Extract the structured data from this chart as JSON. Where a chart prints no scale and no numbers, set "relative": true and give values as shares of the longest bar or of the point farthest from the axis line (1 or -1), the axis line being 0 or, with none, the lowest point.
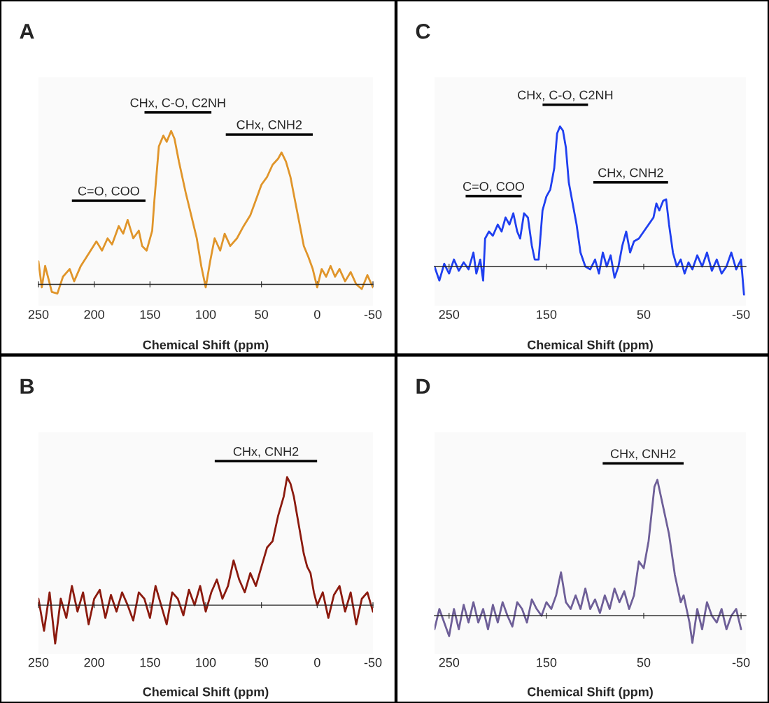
{
  "chart_data": [
    {
      "type": "line",
      "title": "A",
      "relative": true,
      "xlabel": "Chemical Shift (ppm)",
      "xlim": [
        250,
        -50
      ],
      "xticks": [
        250,
        200,
        150,
        100,
        50,
        0,
        -50
      ],
      "grid": false,
      "series": [
        {
          "color": "#e0952a",
          "x": [
            250,
            247,
            244,
            238,
            233,
            228,
            222,
            218,
            212,
            205,
            198,
            193,
            188,
            184,
            178,
            174,
            170,
            165,
            160,
            157,
            153,
            148,
            146,
            142,
            138,
            135,
            131,
            128,
            124,
            118,
            112,
            108,
            104,
            100,
            96,
            92,
            87,
            83,
            78,
            72,
            66,
            60,
            55,
            50,
            45,
            40,
            35,
            32,
            28,
            24,
            20,
            16,
            12,
            8,
            4,
            0,
            -4,
            -8,
            -12,
            -16,
            -20,
            -25,
            -30,
            -35,
            -40,
            -45,
            -50
          ],
          "values": [
            0.15,
            -0.02,
            0.12,
            -0.05,
            -0.06,
            0.05,
            0.1,
            0.02,
            0.12,
            0.2,
            0.28,
            0.22,
            0.3,
            0.26,
            0.38,
            0.33,
            0.42,
            0.3,
            0.35,
            0.25,
            0.22,
            0.35,
            0.55,
            0.9,
            0.97,
            0.93,
            1.0,
            0.95,
            0.8,
            0.6,
            0.42,
            0.3,
            0.12,
            -0.02,
            0.15,
            0.3,
            0.22,
            0.33,
            0.25,
            0.3,
            0.38,
            0.45,
            0.55,
            0.65,
            0.7,
            0.78,
            0.82,
            0.86,
            0.8,
            0.7,
            0.55,
            0.4,
            0.25,
            0.18,
            0.1,
            -0.02,
            0.1,
            0.05,
            0.12,
            0.05,
            0.1,
            0.02,
            0.08,
            0.0,
            -0.03,
            0.06,
            -0.02
          ]
        }
      ],
      "annotations": [
        "C=O, COO",
        "CHx, C-O, C2NH",
        "CHx, CNH2"
      ]
    },
    {
      "type": "line",
      "title": "C",
      "relative": true,
      "xlabel": "Chemical Shift (ppm)",
      "xlim": [
        265,
        -55
      ],
      "xticks": [
        250,
        150,
        50,
        -50
      ],
      "grid": false,
      "series": [
        {
          "color": "#1f3ff0",
          "x": [
            265,
            260,
            255,
            250,
            245,
            240,
            235,
            230,
            225,
            222,
            218,
            215,
            213,
            209,
            205,
            200,
            196,
            192,
            188,
            184,
            180,
            177,
            173,
            169,
            165,
            162,
            158,
            154,
            150,
            146,
            142,
            139,
            136,
            133,
            130,
            127,
            123,
            119,
            115,
            110,
            105,
            100,
            96,
            92,
            88,
            84,
            80,
            76,
            72,
            68,
            64,
            60,
            55,
            50,
            45,
            40,
            37,
            34,
            30,
            27,
            24,
            20,
            16,
            12,
            8,
            4,
            0,
            -5,
            -10,
            -15,
            -20,
            -25,
            -30,
            -35,
            -40,
            -45,
            -50,
            -53
          ],
          "values": [
            0.0,
            -0.1,
            0.02,
            -0.05,
            0.05,
            -0.03,
            0.03,
            -0.02,
            0.1,
            -0.05,
            0.05,
            -0.1,
            0.2,
            0.25,
            0.22,
            0.3,
            0.25,
            0.35,
            0.3,
            0.38,
            0.25,
            0.2,
            0.38,
            0.35,
            0.15,
            0.05,
            0.05,
            0.4,
            0.5,
            0.55,
            0.7,
            0.95,
            1.0,
            0.97,
            0.85,
            0.6,
            0.45,
            0.3,
            0.1,
            0.0,
            -0.02,
            0.05,
            -0.05,
            0.1,
            0.0,
            0.08,
            -0.08,
            0.0,
            0.15,
            0.25,
            0.1,
            0.18,
            0.2,
            0.25,
            0.3,
            0.35,
            0.45,
            0.4,
            0.47,
            0.48,
            0.3,
            0.1,
            0.0,
            0.05,
            -0.05,
            0.03,
            -0.02,
            0.08,
            0.0,
            0.1,
            -0.03,
            0.05,
            -0.05,
            0.0,
            0.1,
            -0.02,
            0.05,
            -0.2
          ]
        }
      ],
      "annotations": [
        "C=O, COO",
        "CHx, C-O, C2NH",
        "CHx, CNH2"
      ]
    },
    {
      "type": "line",
      "title": "B",
      "relative": true,
      "xlabel": "Chemical Shift (ppm)",
      "xlim": [
        250,
        -50
      ],
      "xticks": [
        250,
        200,
        150,
        100,
        50,
        0,
        -50
      ],
      "grid": false,
      "series": [
        {
          "color": "#8b1a0e",
          "x": [
            250,
            245,
            240,
            235,
            230,
            225,
            220,
            215,
            210,
            205,
            200,
            195,
            190,
            185,
            180,
            175,
            170,
            165,
            160,
            155,
            150,
            145,
            140,
            135,
            130,
            125,
            120,
            115,
            110,
            105,
            100,
            95,
            90,
            85,
            80,
            75,
            70,
            65,
            60,
            55,
            50,
            45,
            40,
            35,
            30,
            27,
            24,
            21,
            18,
            15,
            12,
            9,
            6,
            3,
            0,
            -5,
            -10,
            -15,
            -20,
            -25,
            -30,
            -35,
            -40,
            -45,
            -50
          ],
          "values": [
            0.05,
            -0.2,
            0.1,
            -0.3,
            0.05,
            -0.1,
            0.15,
            -0.05,
            0.1,
            -0.15,
            0.05,
            0.12,
            -0.1,
            0.08,
            -0.05,
            0.1,
            0.0,
            -0.12,
            0.1,
            0.05,
            -0.1,
            0.15,
            0.0,
            -0.15,
            0.1,
            0.05,
            -0.08,
            0.12,
            0.0,
            0.15,
            -0.05,
            0.1,
            0.2,
            0.05,
            0.15,
            0.35,
            0.2,
            0.1,
            0.25,
            0.15,
            0.3,
            0.45,
            0.5,
            0.7,
            0.85,
            1.0,
            0.95,
            0.85,
            0.7,
            0.55,
            0.4,
            0.3,
            0.25,
            0.1,
            0.0,
            0.1,
            -0.1,
            0.08,
            0.15,
            -0.05,
            0.1,
            -0.15,
            0.05,
            0.1,
            -0.05
          ]
        }
      ],
      "annotations": [
        "CHx, CNH2"
      ]
    },
    {
      "type": "line",
      "title": "D",
      "relative": true,
      "xlabel": "Chemical Shift (ppm)",
      "xlim": [
        265,
        -55
      ],
      "xticks": [
        250,
        150,
        50,
        -50
      ],
      "grid": false,
      "series": [
        {
          "color": "#6e5f98",
          "x": [
            265,
            260,
            255,
            250,
            245,
            240,
            235,
            230,
            225,
            220,
            215,
            210,
            205,
            200,
            195,
            190,
            185,
            180,
            175,
            170,
            165,
            160,
            155,
            150,
            145,
            140,
            135,
            130,
            125,
            120,
            115,
            110,
            105,
            100,
            95,
            90,
            85,
            80,
            75,
            70,
            65,
            60,
            55,
            50,
            45,
            42,
            39,
            36,
            33,
            30,
            27,
            24,
            21,
            18,
            15,
            12,
            9,
            6,
            3,
            0,
            -5,
            -10,
            -15,
            -20,
            -25,
            -30,
            -35,
            -40,
            -45,
            -50
          ],
          "values": [
            -0.1,
            0.05,
            -0.05,
            -0.15,
            0.05,
            -0.1,
            0.08,
            -0.05,
            0.1,
            -0.05,
            0.05,
            -0.1,
            0.08,
            -0.05,
            0.1,
            0.0,
            -0.08,
            0.1,
            0.05,
            -0.05,
            0.12,
            0.05,
            0.0,
            0.1,
            0.05,
            0.15,
            0.32,
            0.1,
            0.05,
            0.15,
            0.05,
            0.2,
            0.05,
            0.12,
            0.02,
            0.15,
            0.05,
            0.2,
            0.1,
            0.18,
            0.05,
            0.15,
            0.4,
            0.35,
            0.55,
            0.75,
            0.95,
            1.0,
            0.9,
            0.8,
            0.7,
            0.6,
            0.45,
            0.3,
            0.2,
            0.1,
            0.15,
            0.05,
            -0.05,
            -0.2,
            0.05,
            -0.1,
            0.1,
            0.0,
            -0.05,
            0.05,
            -0.1,
            0.0,
            0.05,
            -0.1
          ]
        }
      ],
      "annotations": [
        "CHx, CNH2"
      ]
    }
  ]
}
